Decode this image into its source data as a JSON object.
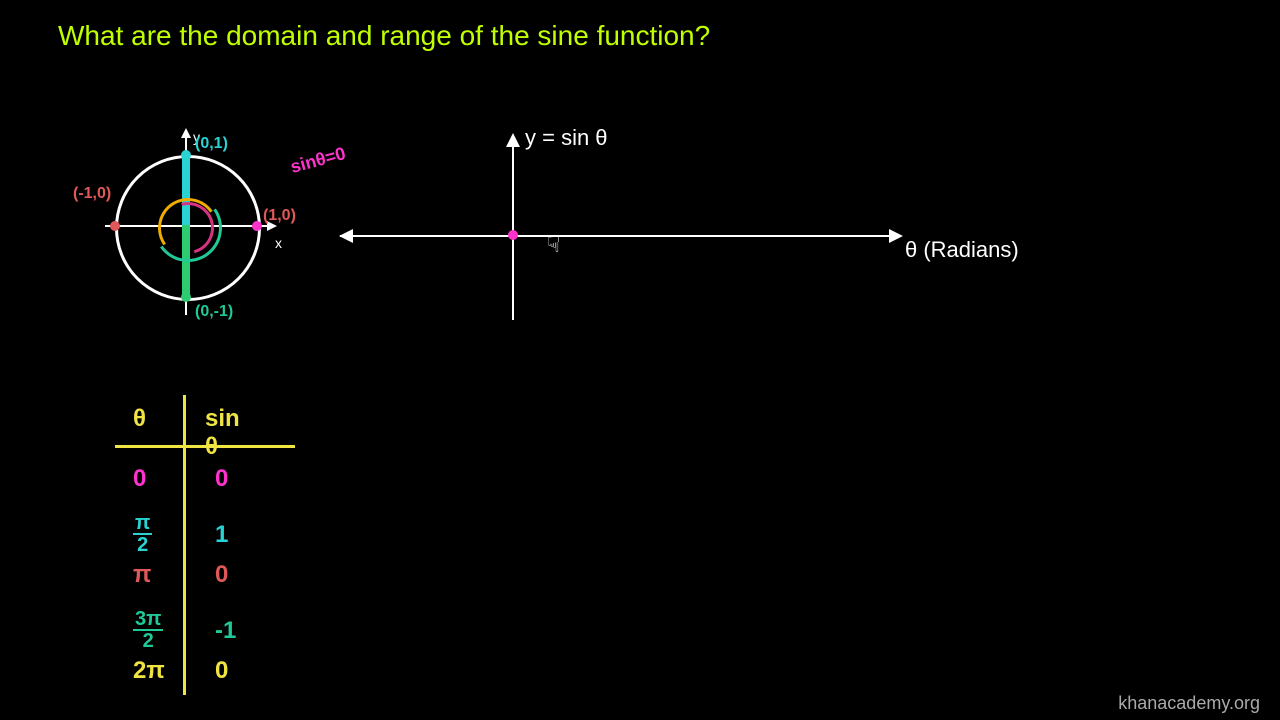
{
  "title": {
    "text": "What are the domain and range of the sine function?",
    "color": "#c0ff00"
  },
  "watermark": "khanacademy.org",
  "colors": {
    "bg": "#000000",
    "axis": "#ffffff",
    "magenta": "#ff33cc",
    "cyan": "#29d3d3",
    "teal": "#20c997",
    "red": "#e05958",
    "green": "#2ecc71",
    "yellow": "#f0e442"
  },
  "graph": {
    "y_label": "y = sin θ",
    "x_label": "θ (Radians)",
    "origin_color": "#ff33cc"
  },
  "unit_circle": {
    "axis_labels": {
      "x": "x",
      "y": "y"
    },
    "points": {
      "right": {
        "label": "(1,0)",
        "color": "#e05958",
        "dot_color": "#ff33cc"
      },
      "top": {
        "label": "(0,1)",
        "color": "#29d3d3",
        "dot_color": "#29d3d3"
      },
      "left": {
        "label": "(-1,0)",
        "color": "#e05958",
        "dot_color": "#e05958"
      },
      "bottom": {
        "label": "(0,-1)",
        "color": "#20c997",
        "dot_color": "#2ecc71"
      }
    },
    "annotation": {
      "text": "sinθ=0",
      "color": "#ff33cc"
    },
    "radius_up_color": "#29d3d3",
    "radius_down_color": "#2ecc71"
  },
  "table": {
    "line_color": "#f0e442",
    "headers": {
      "theta": "θ",
      "sine": "sin θ",
      "color": "#f0e442"
    },
    "rows": [
      {
        "theta_text": "0",
        "theta_is_frac": false,
        "sine": "0",
        "color": "#ff33cc"
      },
      {
        "theta_text": "π/2",
        "theta_is_frac": true,
        "num": "π",
        "den": "2",
        "sine": "1",
        "color": "#29d3d3"
      },
      {
        "theta_text": "π",
        "theta_is_frac": false,
        "sine": "0",
        "color": "#e05958"
      },
      {
        "theta_text": "3π/2",
        "theta_is_frac": true,
        "num": "3π",
        "den": "2",
        "sine": "-1",
        "color": "#20c997"
      },
      {
        "theta_text": "2π",
        "theta_is_frac": false,
        "sine": "0",
        "color": "#f0e442"
      }
    ]
  }
}
